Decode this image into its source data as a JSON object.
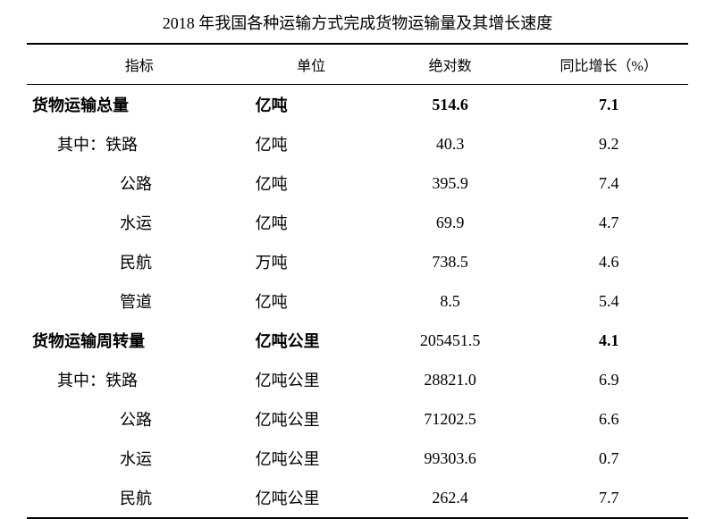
{
  "title_fontsize": 18,
  "cell_fontsize": 18,
  "title": "2018 年我国各种运输方式完成货物运输量及其增长速度",
  "columns": [
    "指标",
    "单位",
    "绝对数",
    "同比增长（%）"
  ],
  "sections": [
    {
      "header": {
        "indicator": "货物运输总量",
        "unit": "亿吨",
        "value": "514.6",
        "growth": "7.1",
        "bold_cols": [
          0,
          1,
          2,
          3
        ]
      },
      "rows": [
        {
          "indicator": "其中：铁路",
          "unit": "亿吨",
          "value": "40.3",
          "growth": "9.2",
          "first": true
        },
        {
          "indicator": "公路",
          "unit": "亿吨",
          "value": "395.9",
          "growth": "7.4"
        },
        {
          "indicator": "水运",
          "unit": "亿吨",
          "value": "69.9",
          "growth": "4.7"
        },
        {
          "indicator": "民航",
          "unit": "万吨",
          "value": "738.5",
          "growth": "4.6"
        },
        {
          "indicator": "管道",
          "unit": "亿吨",
          "value": "8.5",
          "growth": "5.4"
        }
      ]
    },
    {
      "header": {
        "indicator": "货物运输周转量",
        "unit": "亿吨公里",
        "value": "205451.5",
        "growth": "4.1",
        "bold_cols": [
          0,
          1,
          3
        ]
      },
      "rows": [
        {
          "indicator": "其中：铁路",
          "unit": "亿吨公里",
          "value": "28821.0",
          "growth": "6.9",
          "first": true
        },
        {
          "indicator": "公路",
          "unit": "亿吨公里",
          "value": "71202.5",
          "growth": "6.6"
        },
        {
          "indicator": "水运",
          "unit": "亿吨公里",
          "value": "99303.6",
          "growth": "0.7"
        },
        {
          "indicator": "民航",
          "unit": "亿吨公里",
          "value": "262.4",
          "growth": "7.7"
        }
      ]
    }
  ]
}
